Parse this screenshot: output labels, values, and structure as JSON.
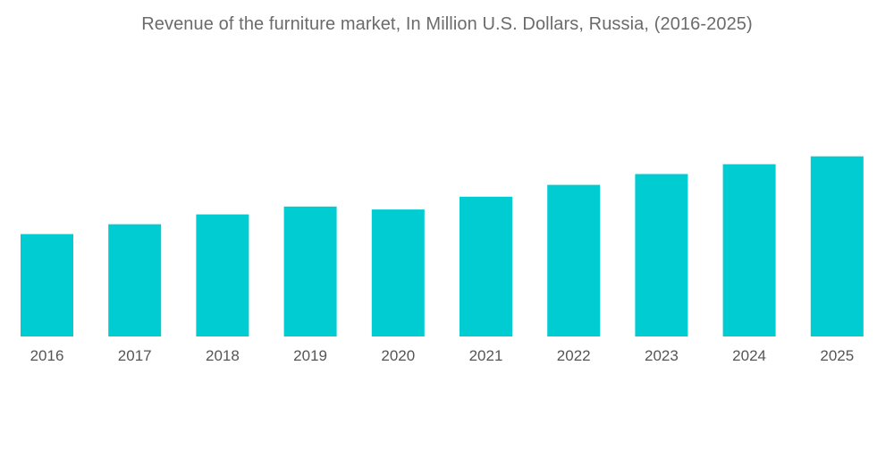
{
  "chart_data": {
    "type": "bar",
    "title": "Revenue of the furniture market, In Million U.S. Dollars, Russia, (2016-2025)",
    "categories": [
      "2016",
      "2017",
      "2018",
      "2019",
      "2020",
      "2021",
      "2022",
      "2023",
      "2024",
      "2025"
    ],
    "values": [
      52,
      57,
      62,
      66,
      64.5,
      71,
      77,
      82.5,
      87.5,
      91.5
    ],
    "xlabel": "",
    "ylabel": "",
    "ylim": [
      0,
      100
    ],
    "grid": false,
    "legend": "none",
    "bar_color": "#00ccd1"
  }
}
